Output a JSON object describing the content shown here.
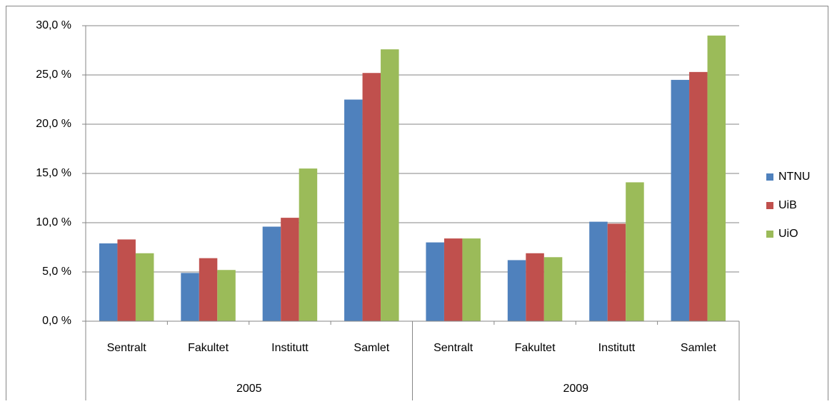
{
  "chart_data": {
    "type": "bar",
    "categories": [
      "Sentralt",
      "Fakultet",
      "Institutt",
      "Samlet",
      "Sentralt",
      "Fakultet",
      "Institutt",
      "Samlet"
    ],
    "groups": [
      "2005",
      "2009"
    ],
    "series": [
      {
        "name": "NTNU",
        "color": "#4f81bd",
        "values": [
          7.9,
          4.9,
          9.6,
          22.5,
          8.0,
          6.2,
          10.1,
          24.5
        ]
      },
      {
        "name": "UiB",
        "color": "#c0504d",
        "values": [
          8.3,
          6.4,
          10.5,
          25.2,
          8.4,
          6.9,
          9.9,
          25.3
        ]
      },
      {
        "name": "UiO",
        "color": "#9bbb59",
        "values": [
          6.9,
          5.2,
          15.5,
          27.6,
          8.4,
          6.5,
          14.1,
          29.0
        ]
      }
    ],
    "ylim": [
      0,
      30
    ],
    "yticks": [
      {
        "value": 0,
        "label": "0,0 %"
      },
      {
        "value": 5,
        "label": "5,0 %"
      },
      {
        "value": 10,
        "label": "10,0 %"
      },
      {
        "value": 15,
        "label": "15,0 %"
      },
      {
        "value": 20,
        "label": "20,0 %"
      },
      {
        "value": 25,
        "label": "25,0 %"
      },
      {
        "value": 30,
        "label": "30,0 %"
      }
    ],
    "grid": true,
    "legend": "right"
  }
}
